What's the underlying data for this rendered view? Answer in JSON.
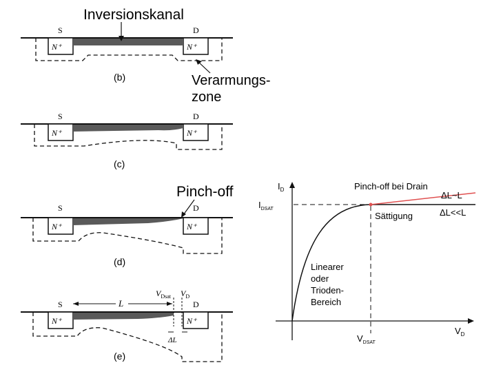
{
  "labels": {
    "inversion_channel": "Inversionskanal",
    "depletion_zone_line1": "Verarmungs-",
    "depletion_zone_line2": "zone",
    "pinch_off": "Pinch-off",
    "source": "S",
    "drain": "D",
    "n_plus": "N⁺",
    "length_L": "L",
    "v_dsat": "V",
    "v_dsat_sub": "Dsat",
    "v_d": "V",
    "v_d_sub": "D",
    "delta_L": "ΔL"
  },
  "panels": [
    {
      "id": "b",
      "caption": "(b)"
    },
    {
      "id": "c",
      "caption": "(c)"
    },
    {
      "id": "d",
      "caption": "(d)"
    },
    {
      "id": "e",
      "caption": "(e)"
    }
  ],
  "graph": {
    "y_axis_label": "I",
    "y_axis_sub": "D",
    "x_axis_label": "V",
    "x_axis_sub": "D",
    "i_dsat_label": "I",
    "i_dsat_sub": "DSAT",
    "v_dsat_label": "V",
    "v_dsat_sub": "DSAT",
    "pinch_off_at_drain": "Pinch-off bei Drain",
    "saturation": "Sättigung",
    "delta_l_approx": "ΔL~L",
    "delta_l_much_less": "ΔL<<L",
    "linear_region_lines": [
      "Linearer",
      "oder",
      "Trioden-",
      "Bereich"
    ]
  },
  "colors": {
    "ink": "#111111",
    "channel": "#5a5a5a",
    "red_curve": "#e05050"
  }
}
